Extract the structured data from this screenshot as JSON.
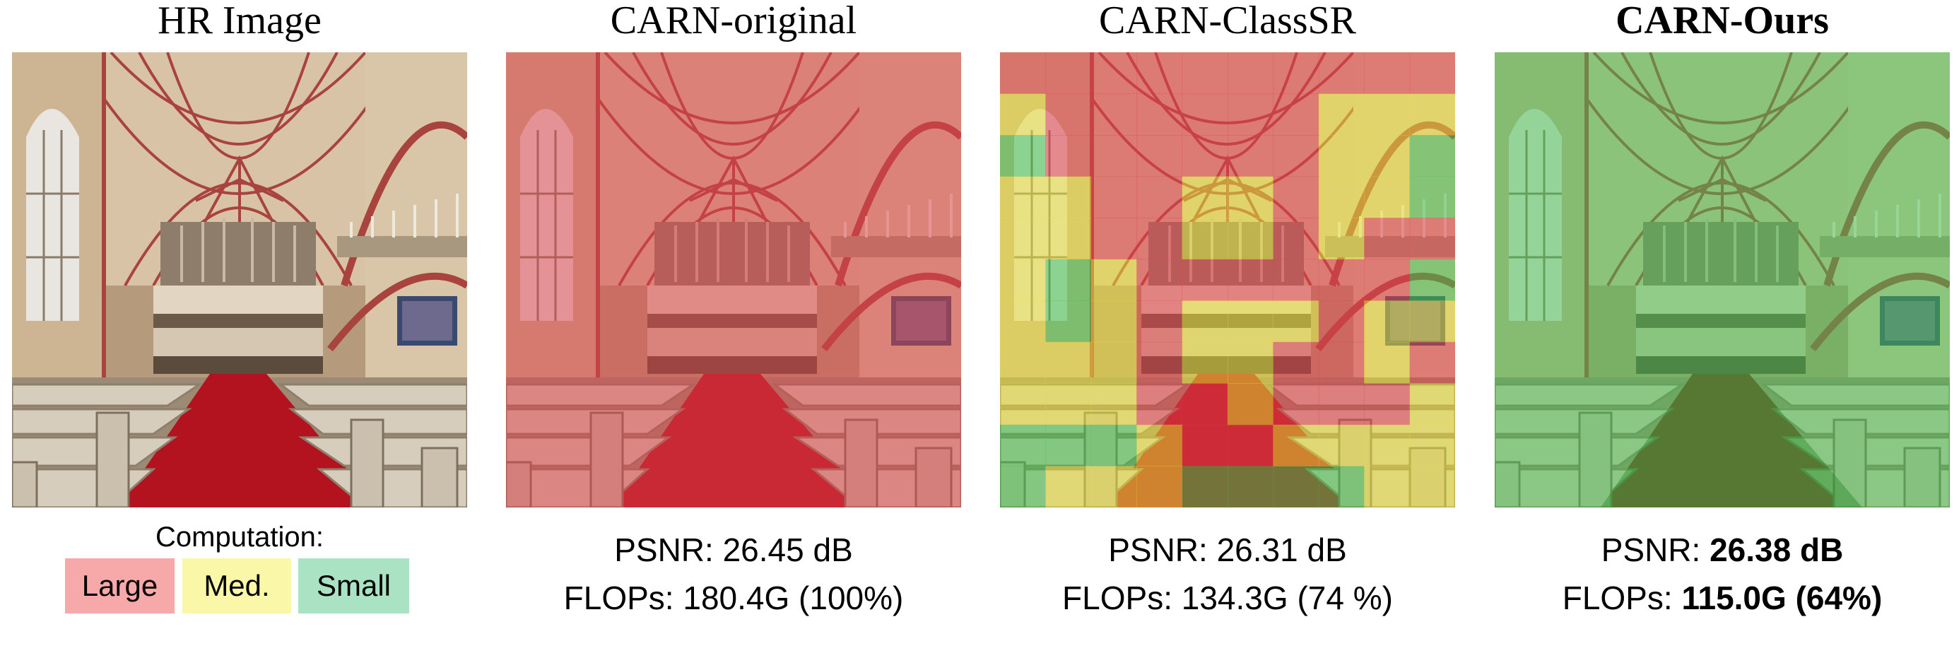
{
  "panels": [
    {
      "title": "HR Image"
    },
    {
      "title": "CARN-original"
    },
    {
      "title": "CARN-ClassSR"
    },
    {
      "title": "CARN-Ours"
    }
  ],
  "legend": {
    "title": "Computation:",
    "items": [
      {
        "label": "Large",
        "color": "#f7a8a8"
      },
      {
        "label": "Med.",
        "color": "#fbf7a8"
      },
      {
        "label": "Small",
        "color": "#a9e3c3"
      }
    ]
  },
  "metrics": {
    "original": {
      "psnr_label": "PSNR:",
      "psnr_value": "26.45 dB",
      "flops_label": "FLOPs:",
      "flops_value": "180.4G (100%)"
    },
    "classsr": {
      "psnr_label": "PSNR:",
      "psnr_value": "26.31 dB",
      "flops_label": "FLOPs:",
      "flops_value": "134.3G (74 %)"
    },
    "ours": {
      "psnr_label": "PSNR:",
      "psnr_value": "26.38 dB",
      "flops_label": "FLOPs:",
      "flops_value": "115.0G (64%)"
    }
  },
  "overlay_colors": {
    "large": "#e0404a",
    "medium": "#e8e03a",
    "small": "#3fc34f"
  },
  "classsr_grid": [
    "LLLLLLLLLL",
    "MLLLLLLMMM",
    "SLLLLLLMMS",
    "MMLLMMLMMS",
    "MMLLMMLMLL",
    "MSMLLLLLLS",
    "MSMLMMMLMM",
    "MMMLMMLLML",
    "MMMLLMLLLM",
    "SSSMLLMMMM",
    "SMMMSSSSMM"
  ]
}
